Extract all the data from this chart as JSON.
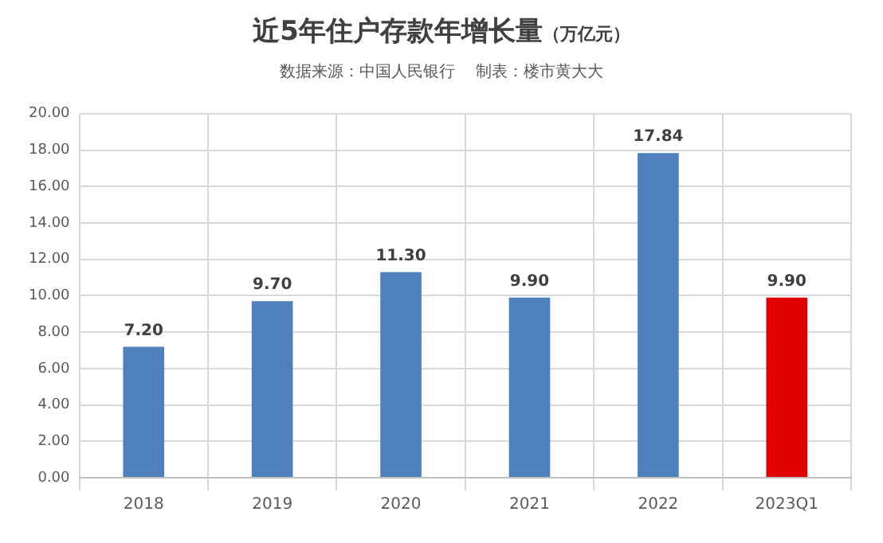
{
  "chart_data": {
    "type": "bar",
    "title": "近5年住户存款年增长量（万亿元）",
    "subtitle": "数据来源：中国人民银行    制表：楼市黄大大",
    "categories": [
      "2018",
      "2019",
      "2020",
      "2021",
      "2022",
      "2023Q1"
    ],
    "values": [
      7.2,
      9.7,
      11.3,
      9.9,
      17.84,
      9.9
    ],
    "value_labels": [
      "7.20",
      "9.70",
      "11.30",
      "9.90",
      "17.84",
      "9.90"
    ],
    "colors": [
      "#4f81bd",
      "#4f81bd",
      "#4f81bd",
      "#4f81bd",
      "#4f81bd",
      "#e00000"
    ],
    "ylim": [
      0,
      20
    ],
    "yticks": [
      {
        "value": 0,
        "label": "0.00"
      },
      {
        "value": 2,
        "label": "2.00"
      },
      {
        "value": 4,
        "label": "4.00"
      },
      {
        "value": 6,
        "label": "6.00"
      },
      {
        "value": 8,
        "label": "8.00"
      },
      {
        "value": 10,
        "label": "10.00"
      },
      {
        "value": 12,
        "label": "12.00"
      },
      {
        "value": 14,
        "label": "14.00"
      },
      {
        "value": 16,
        "label": "16.00"
      },
      {
        "value": 18,
        "label": "18.00"
      },
      {
        "value": 20,
        "label": "20.00"
      }
    ],
    "grid": true,
    "legend": false
  }
}
